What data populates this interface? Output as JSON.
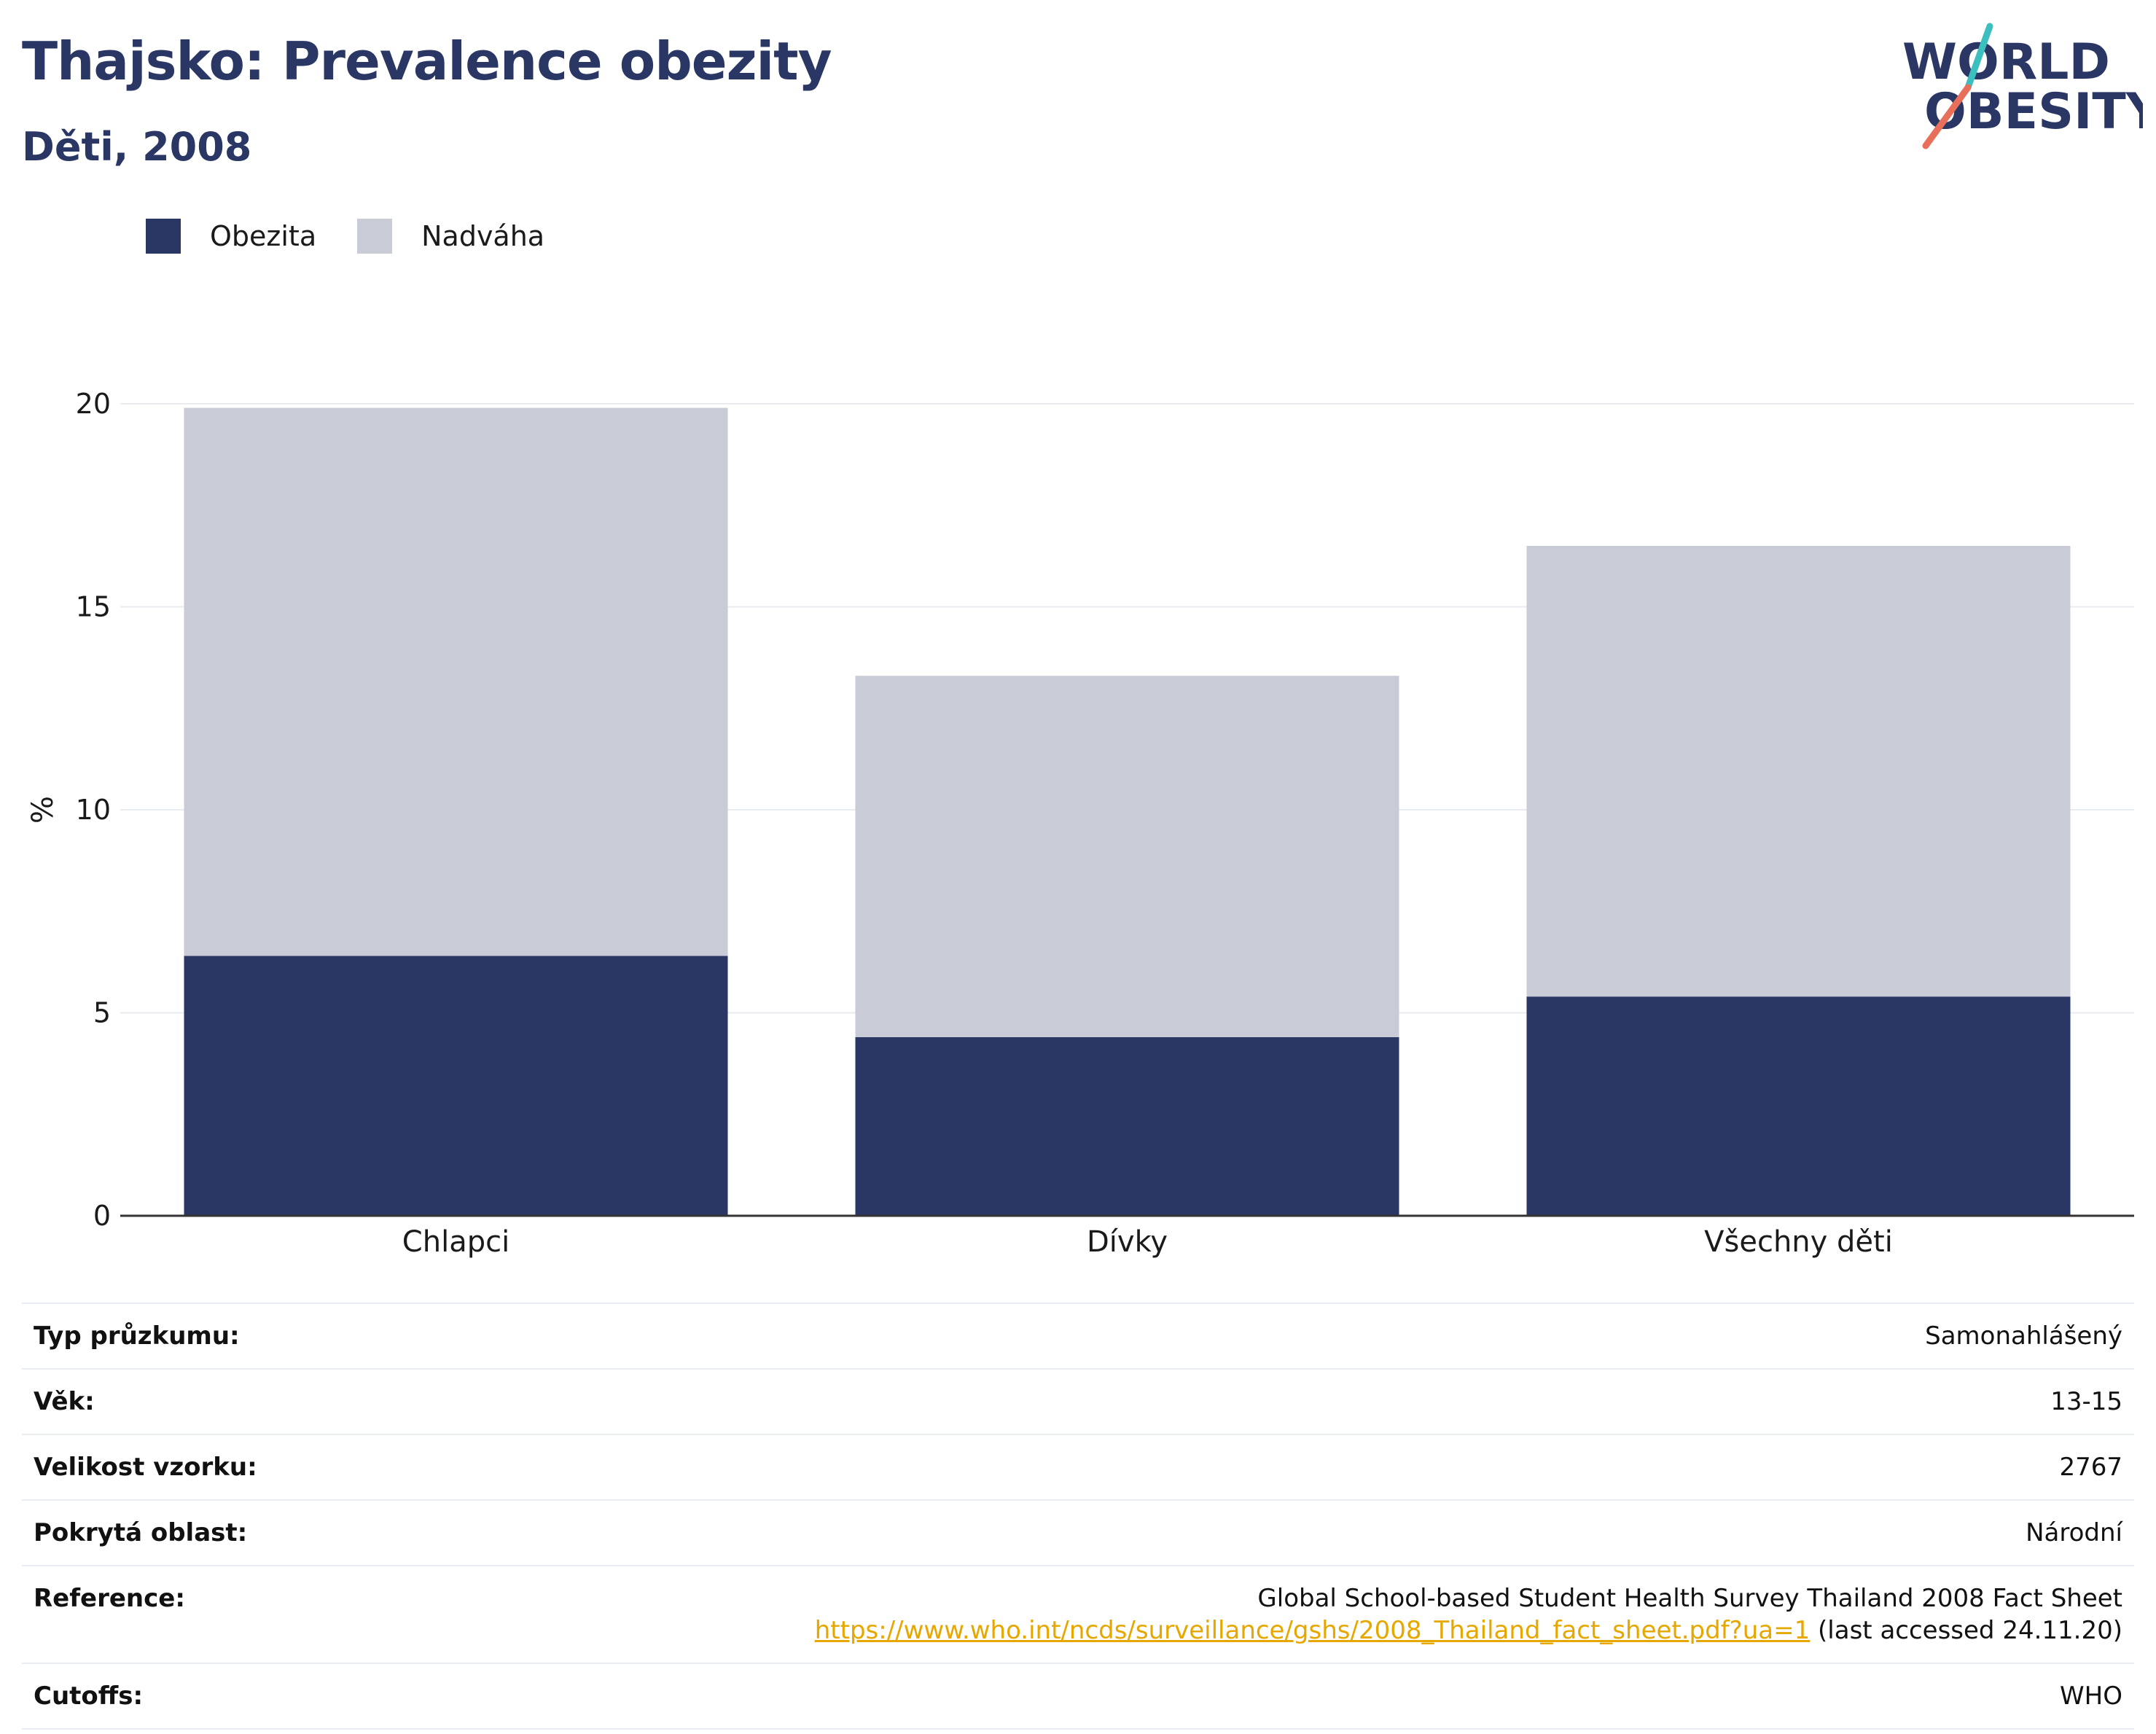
{
  "header": {
    "title": "Thajsko: Prevalence obezity",
    "subtitle": "Děti, 2008"
  },
  "logo": {
    "line1": "WORLD",
    "line2": "OBESITY",
    "colors": {
      "text": "#2a3664",
      "slash_top": "#3bbfbf",
      "slash_bottom": "#e8705a"
    }
  },
  "legend": [
    {
      "label": "Obezita",
      "color": "#2a3664"
    },
    {
      "label": "Nadváha",
      "color": "#c9cbd6"
    }
  ],
  "chart_data": {
    "type": "bar",
    "stacked": true,
    "categories": [
      "Chlapci",
      "Dívky",
      "Všechny děti"
    ],
    "series": [
      {
        "name": "Obezita",
        "color": "#2a3664",
        "values": [
          6.4,
          4.4,
          5.4
        ]
      },
      {
        "name": "Nadváha",
        "color": "#c9cbd6",
        "values": [
          13.5,
          8.9,
          11.1
        ]
      }
    ],
    "ylabel": "%",
    "ylim": [
      0,
      20
    ],
    "yticks": [
      0,
      5,
      10,
      15,
      20
    ],
    "grid": true,
    "legend_position": "top-left"
  },
  "info": {
    "survey_type": {
      "label": "Typ průzkumu:",
      "value": "Samonahlášený"
    },
    "age": {
      "label": "Věk:",
      "value": "13-15"
    },
    "sample_size": {
      "label": "Velikost vzorku:",
      "value": "2767"
    },
    "area": {
      "label": "Pokrytá oblast:",
      "value": "Národní"
    },
    "reference": {
      "label": "Reference:",
      "title": "Global School-based Student Health Survey Thailand 2008 Fact Sheet",
      "url": "https://www.who.int/ncds/surveillance/gshs/2008_Thailand_fact_sheet.pdf?ua=1",
      "accessed": "(last accessed 24.11.20)"
    },
    "cutoffs": {
      "label": "Cutoffs:",
      "value": "WHO"
    }
  }
}
